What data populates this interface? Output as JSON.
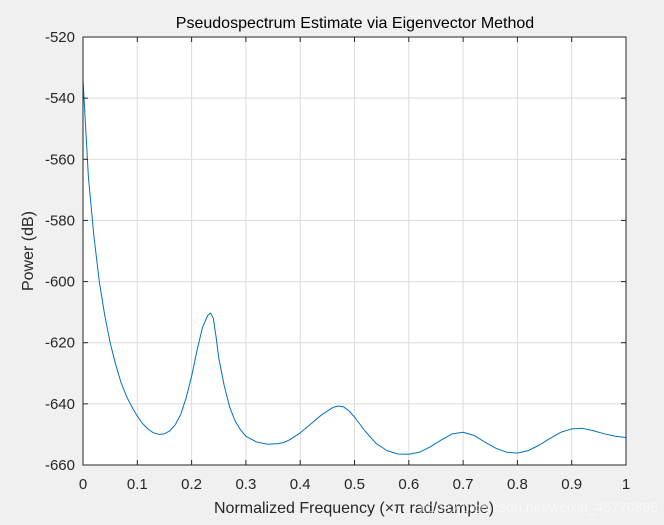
{
  "chart_data": {
    "type": "line",
    "title": "Pseudospectrum Estimate via Eigenvector Method",
    "xlabel": "Normalized Frequency  (×π rad/sample)",
    "ylabel": "Power (dB)",
    "xlim": [
      0,
      1
    ],
    "ylim": [
      -660,
      -520
    ],
    "xticks": [
      0,
      0.1,
      0.2,
      0.3,
      0.4,
      0.5,
      0.6,
      0.7,
      0.8,
      0.9,
      1
    ],
    "xtick_labels": [
      "0",
      "0.1",
      "0.2",
      "0.3",
      "0.4",
      "0.5",
      "0.6",
      "0.7",
      "0.8",
      "0.9",
      "1"
    ],
    "yticks": [
      -520,
      -540,
      -560,
      -580,
      -600,
      -620,
      -640,
      -660
    ],
    "ytick_labels": [
      "-520",
      "-540",
      "-560",
      "-580",
      "-600",
      "-620",
      "-640",
      "-660"
    ],
    "grid": true,
    "line_color": "#0072BD",
    "series": [
      {
        "x": [
          0,
          0.005,
          0.01,
          0.02,
          0.03,
          0.04,
          0.05,
          0.06,
          0.07,
          0.08,
          0.09,
          0.1,
          0.11,
          0.12,
          0.13,
          0.14,
          0.15,
          0.16,
          0.17,
          0.18,
          0.19,
          0.2,
          0.21,
          0.22,
          0.23,
          0.235,
          0.24,
          0.245,
          0.25,
          0.26,
          0.27,
          0.28,
          0.29,
          0.3,
          0.32,
          0.34,
          0.36,
          0.37,
          0.38,
          0.4,
          0.42,
          0.44,
          0.46,
          0.47,
          0.48,
          0.49,
          0.5,
          0.52,
          0.54,
          0.56,
          0.58,
          0.6,
          0.62,
          0.64,
          0.66,
          0.68,
          0.7,
          0.72,
          0.74,
          0.76,
          0.78,
          0.8,
          0.82,
          0.84,
          0.86,
          0.88,
          0.9,
          0.92,
          0.94,
          0.96,
          0.98,
          1.0
        ],
        "y": [
          -534,
          -550,
          -566,
          -585,
          -600,
          -611,
          -620,
          -627,
          -633,
          -637.5,
          -641,
          -644,
          -646.5,
          -648.3,
          -649.5,
          -650,
          -649.8,
          -648.8,
          -646.8,
          -643.5,
          -638,
          -631,
          -622.5,
          -615,
          -611,
          -610.3,
          -612,
          -618,
          -625,
          -634,
          -641,
          -645.5,
          -648.5,
          -650.6,
          -652.5,
          -653.2,
          -653,
          -652.6,
          -651.8,
          -649.5,
          -646.5,
          -643.5,
          -641.2,
          -640.7,
          -641,
          -642.3,
          -644.3,
          -649,
          -653,
          -655.3,
          -656.4,
          -656.5,
          -655.8,
          -654,
          -651.8,
          -649.8,
          -649.3,
          -650.3,
          -652.5,
          -654.5,
          -655.8,
          -656.1,
          -655.3,
          -653.5,
          -651.3,
          -649.3,
          -648.2,
          -648,
          -648.8,
          -649.8,
          -650.6,
          -651
        ]
      }
    ]
  },
  "watermark": "https://blog.csdn.net/weixin_45770896"
}
